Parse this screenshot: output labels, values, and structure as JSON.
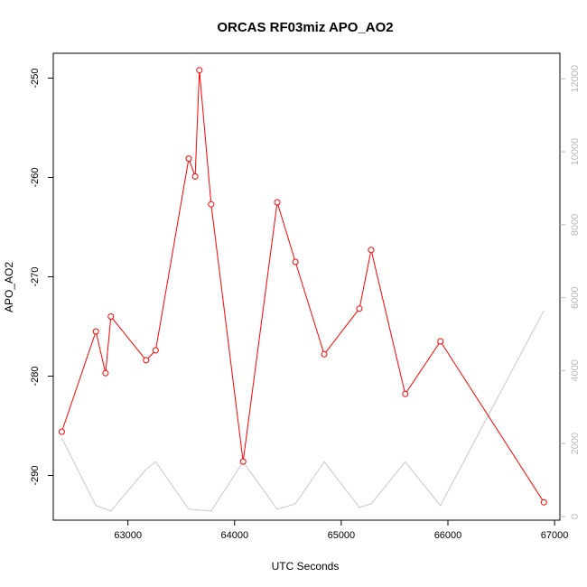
{
  "chart_data": {
    "type": "line",
    "title": "ORCAS RF03miz APO_AO2",
    "xlabel": "UTC Seconds",
    "ylabel": "APO_AO2",
    "xlim": [
      62300,
      67050
    ],
    "ylim": [
      -294.5,
      -247.5
    ],
    "y2lim": [
      -100,
      12700
    ],
    "x_ticks": [
      63000,
      64000,
      65000,
      66000,
      67000
    ],
    "y_ticks": [
      -290,
      -280,
      -270,
      -260,
      -250
    ],
    "y2_ticks": [
      0,
      2000,
      4000,
      6000,
      8000,
      10000,
      12000
    ],
    "grid": false,
    "colors": {
      "primary": "#ff0000",
      "secondary": "#c8c8c8"
    },
    "series": [
      {
        "axis": "left",
        "color": "#ff0000",
        "markers": "open-circle",
        "x": [
          62380,
          62700,
          62790,
          62840,
          63170,
          63260,
          63570,
          63630,
          63670,
          63780,
          64080,
          64400,
          64570,
          64840,
          65170,
          65280,
          65600,
          65930,
          66900
        ],
        "y": [
          -285.6,
          -275.5,
          -279.7,
          -274.0,
          -278.4,
          -277.4,
          -258.1,
          -259.9,
          -249.2,
          -262.7,
          -288.6,
          -262.5,
          -268.5,
          -277.8,
          -273.2,
          -267.3,
          -281.8,
          -276.5,
          -292.7
        ]
      },
      {
        "axis": "right",
        "color": "#c8c8c8",
        "x": [
          62380,
          62700,
          62840,
          63170,
          63260,
          63570,
          63780,
          64080,
          64400,
          64570,
          64840,
          65170,
          65280,
          65600,
          65930,
          66900
        ],
        "y": [
          2150,
          300,
          150,
          1300,
          1500,
          200,
          150,
          1500,
          200,
          350,
          1500,
          250,
          350,
          1500,
          300,
          5650
        ]
      }
    ]
  }
}
